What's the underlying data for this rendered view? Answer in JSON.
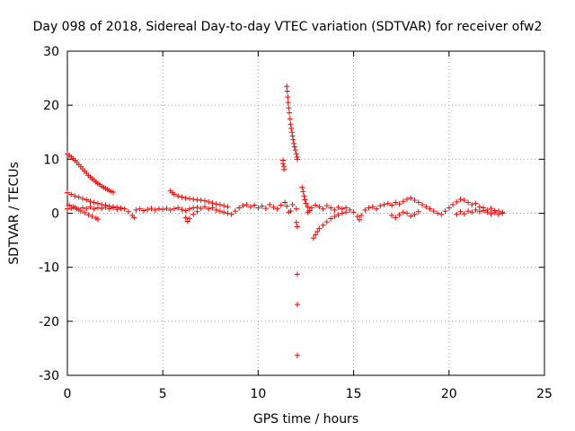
{
  "chart_data": {
    "type": "scatter",
    "title": "Day 098 of 2018, Sidereal Day-to-day VTEC variation (SDTVAR) for receiver ofw2",
    "xlabel": "GPS time / hours",
    "ylabel": "SDTVAR / TECUs",
    "xlim": [
      0,
      25
    ],
    "ylim": [
      -30,
      30
    ],
    "xticks": [
      0,
      5,
      10,
      15,
      20,
      25
    ],
    "yticks": [
      -30,
      -20,
      -10,
      0,
      10,
      20,
      30
    ],
    "xtick_labels": [
      "0",
      "5",
      "10",
      "15",
      "20",
      "25"
    ],
    "ytick_labels": [
      "-30",
      "-20",
      "-10",
      "0",
      "10",
      "20",
      "30"
    ],
    "grid": true,
    "marker": "+",
    "marker_color": "#ff0000",
    "series": [
      {
        "name": "ofw2",
        "points": [
          [
            0.0,
            11.0
          ],
          [
            0.1,
            10.7
          ],
          [
            0.2,
            10.4
          ],
          [
            0.3,
            10.1
          ],
          [
            0.4,
            9.8
          ],
          [
            0.5,
            9.4
          ],
          [
            0.6,
            9.0
          ],
          [
            0.7,
            8.6
          ],
          [
            0.8,
            8.2
          ],
          [
            0.9,
            7.8
          ],
          [
            1.0,
            7.4
          ],
          [
            1.1,
            7.0
          ],
          [
            1.2,
            6.7
          ],
          [
            1.3,
            6.4
          ],
          [
            1.4,
            6.1
          ],
          [
            1.5,
            5.8
          ],
          [
            1.6,
            5.5
          ],
          [
            1.7,
            5.3
          ],
          [
            1.8,
            5.0
          ],
          [
            1.9,
            4.8
          ],
          [
            2.0,
            4.6
          ],
          [
            2.1,
            4.4
          ],
          [
            2.2,
            4.2
          ],
          [
            2.3,
            4.0
          ],
          [
            2.4,
            3.9
          ],
          [
            0.0,
            3.8
          ],
          [
            0.2,
            3.5
          ],
          [
            0.4,
            3.2
          ],
          [
            0.6,
            3.0
          ],
          [
            0.8,
            2.7
          ],
          [
            1.0,
            2.5
          ],
          [
            1.2,
            2.2
          ],
          [
            1.4,
            2.0
          ],
          [
            1.6,
            1.8
          ],
          [
            1.8,
            1.6
          ],
          [
            2.0,
            1.5
          ],
          [
            2.2,
            1.3
          ],
          [
            2.4,
            1.2
          ],
          [
            2.6,
            1.1
          ],
          [
            2.8,
            1.0
          ],
          [
            0.1,
            1.5
          ],
          [
            0.3,
            1.2
          ],
          [
            0.5,
            0.8
          ],
          [
            0.7,
            0.4
          ],
          [
            0.9,
            0.1
          ],
          [
            1.1,
            -0.3
          ],
          [
            1.3,
            -0.6
          ],
          [
            1.5,
            -0.9
          ],
          [
            1.6,
            -1.1
          ],
          [
            0.0,
            0.8
          ],
          [
            0.2,
            0.9
          ],
          [
            0.4,
            1.1
          ],
          [
            0.6,
            0.7
          ],
          [
            0.8,
            1.0
          ],
          [
            1.0,
            0.9
          ],
          [
            1.2,
            1.2
          ],
          [
            1.4,
            0.8
          ],
          [
            1.6,
            1.0
          ],
          [
            1.8,
            0.9
          ],
          [
            2.0,
            1.1
          ],
          [
            2.2,
            0.8
          ],
          [
            2.4,
            1.0
          ],
          [
            2.6,
            0.7
          ],
          [
            2.8,
            0.9
          ],
          [
            3.0,
            0.8
          ],
          [
            3.2,
            0.3
          ],
          [
            3.4,
            -0.4
          ],
          [
            3.5,
            -0.8
          ],
          [
            3.6,
            0.6
          ],
          [
            3.8,
            0.8
          ],
          [
            4.0,
            0.5
          ],
          [
            4.2,
            0.7
          ],
          [
            4.4,
            0.9
          ],
          [
            4.6,
            0.6
          ],
          [
            4.8,
            0.8
          ],
          [
            5.0,
            0.7
          ],
          [
            5.2,
            0.9
          ],
          [
            5.4,
            0.6
          ],
          [
            5.6,
            0.8
          ],
          [
            5.8,
            1.0
          ],
          [
            6.0,
            0.7
          ],
          [
            6.2,
            0.5
          ],
          [
            6.4,
            0.8
          ],
          [
            6.6,
            1.0
          ],
          [
            5.4,
            4.2
          ],
          [
            5.5,
            3.8
          ],
          [
            5.6,
            3.5
          ],
          [
            5.8,
            3.2
          ],
          [
            6.0,
            3.0
          ],
          [
            6.2,
            2.8
          ],
          [
            6.4,
            2.7
          ],
          [
            6.6,
            2.6
          ],
          [
            6.8,
            2.5
          ],
          [
            7.0,
            2.4
          ],
          [
            7.2,
            2.3
          ],
          [
            7.4,
            2.1
          ],
          [
            7.6,
            1.9
          ],
          [
            7.8,
            1.7
          ],
          [
            8.0,
            1.6
          ],
          [
            8.2,
            1.4
          ],
          [
            8.4,
            1.2
          ],
          [
            6.2,
            -0.8
          ],
          [
            6.3,
            -1.5
          ],
          [
            6.4,
            -1.0
          ],
          [
            6.6,
            -0.2
          ],
          [
            6.8,
            0.3
          ],
          [
            6.8,
            1.1
          ],
          [
            7.0,
            0.9
          ],
          [
            7.2,
            1.2
          ],
          [
            7.4,
            0.8
          ],
          [
            7.6,
            1.0
          ],
          [
            7.8,
            0.6
          ],
          [
            8.0,
            0.4
          ],
          [
            8.2,
            0.2
          ],
          [
            8.4,
            0.0
          ],
          [
            8.6,
            -0.2
          ],
          [
            8.8,
            0.4
          ],
          [
            9.0,
            1.0
          ],
          [
            9.2,
            1.4
          ],
          [
            9.4,
            1.6
          ],
          [
            9.6,
            1.2
          ],
          [
            9.8,
            1.5
          ],
          [
            10.0,
            1.0
          ],
          [
            10.2,
            1.3
          ],
          [
            10.4,
            0.9
          ],
          [
            10.6,
            1.6
          ],
          [
            10.8,
            1.1
          ],
          [
            11.0,
            0.8
          ],
          [
            11.2,
            1.5
          ],
          [
            11.4,
            2.0
          ],
          [
            11.5,
            1.3
          ],
          [
            11.6,
            0.2
          ],
          [
            11.7,
            0.4
          ],
          [
            11.8,
            1.6
          ],
          [
            12.0,
            0.8
          ],
          [
            11.3,
            9.8
          ],
          [
            11.3,
            9.2
          ],
          [
            11.35,
            8.6
          ],
          [
            11.35,
            8.1
          ],
          [
            11.5,
            23.5
          ],
          [
            11.52,
            22.6
          ],
          [
            11.55,
            21.5
          ],
          [
            11.57,
            20.5
          ],
          [
            11.6,
            19.5
          ],
          [
            11.63,
            18.6
          ],
          [
            11.67,
            17.5
          ],
          [
            11.7,
            16.5
          ],
          [
            11.73,
            15.7
          ],
          [
            11.77,
            15.0
          ],
          [
            11.8,
            14.3
          ],
          [
            11.83,
            13.6
          ],
          [
            11.87,
            12.9
          ],
          [
            11.9,
            12.3
          ],
          [
            11.95,
            11.7
          ],
          [
            12.0,
            11.0
          ],
          [
            12.03,
            10.4
          ],
          [
            12.05,
            10.0
          ],
          [
            12.0,
            -1.7
          ],
          [
            12.05,
            -2.5
          ],
          [
            12.05,
            -11.3
          ],
          [
            12.05,
            -16.9
          ],
          [
            12.05,
            -26.3
          ],
          [
            12.3,
            4.8
          ],
          [
            12.35,
            4.0
          ],
          [
            12.4,
            3.2
          ],
          [
            12.45,
            2.5
          ],
          [
            12.5,
            1.8
          ],
          [
            12.6,
            1.2
          ],
          [
            12.7,
            0.5
          ],
          [
            12.9,
            -4.6
          ],
          [
            13.0,
            -4.0
          ],
          [
            13.1,
            -3.4
          ],
          [
            13.2,
            -2.8
          ],
          [
            13.4,
            -2.2
          ],
          [
            13.6,
            -1.6
          ],
          [
            13.8,
            -1.0
          ],
          [
            14.0,
            -0.6
          ],
          [
            14.2,
            -0.3
          ],
          [
            14.4,
            0.0
          ],
          [
            14.6,
            0.2
          ],
          [
            12.6,
            0.2
          ],
          [
            12.8,
            1.0
          ],
          [
            13.0,
            1.5
          ],
          [
            13.2,
            1.2
          ],
          [
            13.4,
            0.8
          ],
          [
            13.6,
            1.4
          ],
          [
            13.8,
            1.0
          ],
          [
            14.0,
            0.6
          ],
          [
            14.2,
            1.1
          ],
          [
            14.4,
            0.8
          ],
          [
            14.6,
            1.0
          ],
          [
            14.8,
            0.6
          ],
          [
            15.0,
            0.2
          ],
          [
            15.2,
            -0.6
          ],
          [
            15.3,
            -1.2
          ],
          [
            15.4,
            -0.4
          ],
          [
            15.6,
            0.6
          ],
          [
            15.8,
            1.0
          ],
          [
            16.0,
            1.2
          ],
          [
            16.2,
            0.8
          ],
          [
            16.4,
            1.4
          ],
          [
            16.6,
            1.6
          ],
          [
            16.8,
            1.8
          ],
          [
            17.0,
            1.5
          ],
          [
            17.2,
            2.0
          ],
          [
            17.4,
            1.7
          ],
          [
            17.6,
            2.2
          ],
          [
            17.8,
            2.6
          ],
          [
            18.0,
            2.8
          ],
          [
            18.2,
            2.4
          ],
          [
            18.4,
            2.0
          ],
          [
            18.6,
            1.6
          ],
          [
            18.8,
            1.2
          ],
          [
            19.0,
            0.8
          ],
          [
            19.2,
            0.4
          ],
          [
            19.4,
            0.0
          ],
          [
            19.6,
            -0.2
          ],
          [
            17.0,
            -0.4
          ],
          [
            17.2,
            -0.8
          ],
          [
            17.4,
            -0.3
          ],
          [
            17.6,
            0.2
          ],
          [
            17.8,
            0.0
          ],
          [
            18.0,
            -0.5
          ],
          [
            18.2,
            -0.2
          ],
          [
            18.4,
            0.3
          ],
          [
            19.8,
            0.4
          ],
          [
            20.0,
            1.0
          ],
          [
            20.2,
            1.6
          ],
          [
            20.4,
            2.1
          ],
          [
            20.6,
            2.6
          ],
          [
            20.8,
            2.4
          ],
          [
            21.0,
            2.0
          ],
          [
            21.2,
            1.6
          ],
          [
            21.4,
            1.8
          ],
          [
            21.6,
            1.2
          ],
          [
            21.8,
            1.0
          ],
          [
            22.0,
            0.6
          ],
          [
            22.2,
            0.9
          ],
          [
            22.4,
            0.5
          ],
          [
            22.6,
            0.4
          ],
          [
            22.8,
            0.0
          ],
          [
            20.4,
            -0.2
          ],
          [
            20.6,
            0.3
          ],
          [
            20.8,
            -0.1
          ],
          [
            21.0,
            0.4
          ],
          [
            21.2,
            0.2
          ],
          [
            21.4,
            0.6
          ],
          [
            21.6,
            0.3
          ],
          [
            21.8,
            0.5
          ],
          [
            22.0,
            0.2
          ],
          [
            22.2,
            -0.1
          ],
          [
            22.4,
            0.1
          ],
          [
            22.6,
            -0.2
          ],
          [
            22.8,
            0.2
          ]
        ]
      }
    ]
  }
}
